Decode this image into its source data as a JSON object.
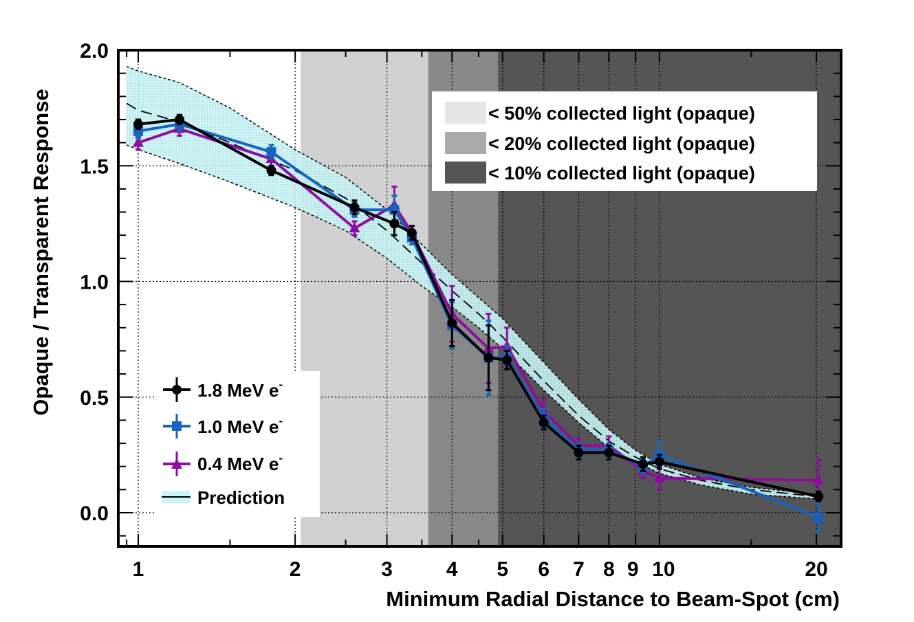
{
  "chart_data": {
    "type": "line",
    "title": "",
    "xlabel": "Minimum Radial Distance to Beam-Spot (cm)",
    "ylabel": "Opaque / Transparent Response",
    "xscale": "log",
    "xlim": [
      0.93,
      24
    ],
    "ylim": [
      -0.15,
      2.0
    ],
    "grid": true,
    "x_ticks": [
      1,
      2,
      3,
      4,
      5,
      6,
      7,
      8,
      9,
      10,
      20
    ],
    "x_tick_labels": [
      "1",
      "2",
      "3",
      "4",
      "5",
      "6",
      "7",
      "8",
      "9",
      "10",
      "20"
    ],
    "y_ticks": [
      0.0,
      0.5,
      1.0,
      1.5,
      2.0
    ],
    "y_tick_labels": [
      "0.0",
      "0.5",
      "1.0",
      "1.5",
      "2.0"
    ],
    "regions": [
      {
        "label": "< 50% collected light (opaque)",
        "x_range": [
          2.05,
          3.6
        ],
        "color": "#d0d0d0"
      },
      {
        "label": "< 20% collected light (opaque)",
        "x_range": [
          3.6,
          4.9
        ],
        "color": "#888888"
      },
      {
        "label": "< 10% collected light (opaque)",
        "x_range": [
          4.9,
          24
        ],
        "color": "#555555"
      }
    ],
    "series": [
      {
        "name": "1.8 MeV e-",
        "label_main": "1.8 MeV e",
        "label_sup": "-",
        "color": "#000000",
        "marker": "circle",
        "x": [
          1.0,
          1.2,
          1.8,
          2.6,
          3.1,
          3.35,
          4.0,
          4.7,
          5.1,
          6.0,
          7.0,
          8.0,
          9.3,
          10.0,
          20.2
        ],
        "y": [
          1.68,
          1.7,
          1.48,
          1.32,
          1.25,
          1.21,
          0.82,
          0.67,
          0.66,
          0.39,
          0.26,
          0.26,
          0.21,
          0.22,
          0.07
        ],
        "err": [
          0.02,
          0.02,
          0.02,
          0.03,
          0.05,
          0.03,
          0.1,
          0.14,
          0.04,
          0.03,
          0.03,
          0.03,
          0.03,
          0.03,
          0.02
        ]
      },
      {
        "name": "1.0 MeV e-",
        "label_main": "1.0 MeV e",
        "label_sup": "-",
        "color": "#1565c0",
        "marker": "square",
        "x": [
          1.0,
          1.2,
          1.8,
          2.6,
          3.1,
          3.35,
          4.0,
          4.7,
          5.1,
          6.0,
          7.0,
          8.0,
          9.3,
          10.0,
          20.2
        ],
        "y": [
          1.65,
          1.68,
          1.56,
          1.31,
          1.31,
          1.19,
          0.81,
          0.67,
          0.67,
          0.41,
          0.27,
          0.27,
          0.2,
          0.25,
          -0.02
        ],
        "err": [
          0.03,
          0.03,
          0.03,
          0.03,
          0.06,
          0.03,
          0.1,
          0.16,
          0.05,
          0.04,
          0.03,
          0.03,
          0.03,
          0.06,
          0.06
        ]
      },
      {
        "name": "0.4 MeV e-",
        "label_main": "0.4 MeV e",
        "label_sup": "-",
        "color": "#8e0da0",
        "marker": "triangle",
        "x": [
          1.0,
          1.2,
          1.8,
          2.6,
          3.1,
          3.35,
          4.0,
          4.7,
          5.1,
          6.0,
          7.0,
          8.0,
          9.3,
          10.0,
          20.2
        ],
        "y": [
          1.6,
          1.66,
          1.53,
          1.23,
          1.33,
          1.21,
          0.86,
          0.71,
          0.72,
          0.44,
          0.29,
          0.29,
          0.18,
          0.15,
          0.14
        ],
        "err": [
          0.03,
          0.03,
          0.04,
          0.03,
          0.08,
          0.03,
          0.12,
          0.15,
          0.08,
          0.05,
          0.03,
          0.04,
          0.03,
          0.05,
          0.09
        ]
      }
    ],
    "prediction": {
      "name": "Prediction",
      "x": [
        0.95,
        1.0,
        1.2,
        1.5,
        2.0,
        2.5,
        3.0,
        3.5,
        4.0,
        4.5,
        5.0,
        6.0,
        7.0,
        8.0,
        9.0,
        10.0,
        12.0,
        15.0,
        20.0
      ],
      "center": [
        1.77,
        1.74,
        1.69,
        1.6,
        1.48,
        1.36,
        1.22,
        1.08,
        0.96,
        0.86,
        0.76,
        0.57,
        0.42,
        0.31,
        0.24,
        0.19,
        0.14,
        0.1,
        0.07
      ],
      "upper": [
        1.93,
        1.91,
        1.86,
        1.75,
        1.57,
        1.45,
        1.31,
        1.16,
        1.03,
        0.93,
        0.84,
        0.65,
        0.49,
        0.36,
        0.27,
        0.21,
        0.15,
        0.11,
        0.08
      ],
      "lower": [
        1.59,
        1.57,
        1.51,
        1.43,
        1.32,
        1.22,
        1.1,
        0.98,
        0.89,
        0.8,
        0.71,
        0.53,
        0.39,
        0.28,
        0.22,
        0.17,
        0.12,
        0.08,
        0.06
      ],
      "band_color": "#c9f5f7"
    },
    "legend_position": "bottom-left",
    "region_legend_position": "top-right"
  }
}
